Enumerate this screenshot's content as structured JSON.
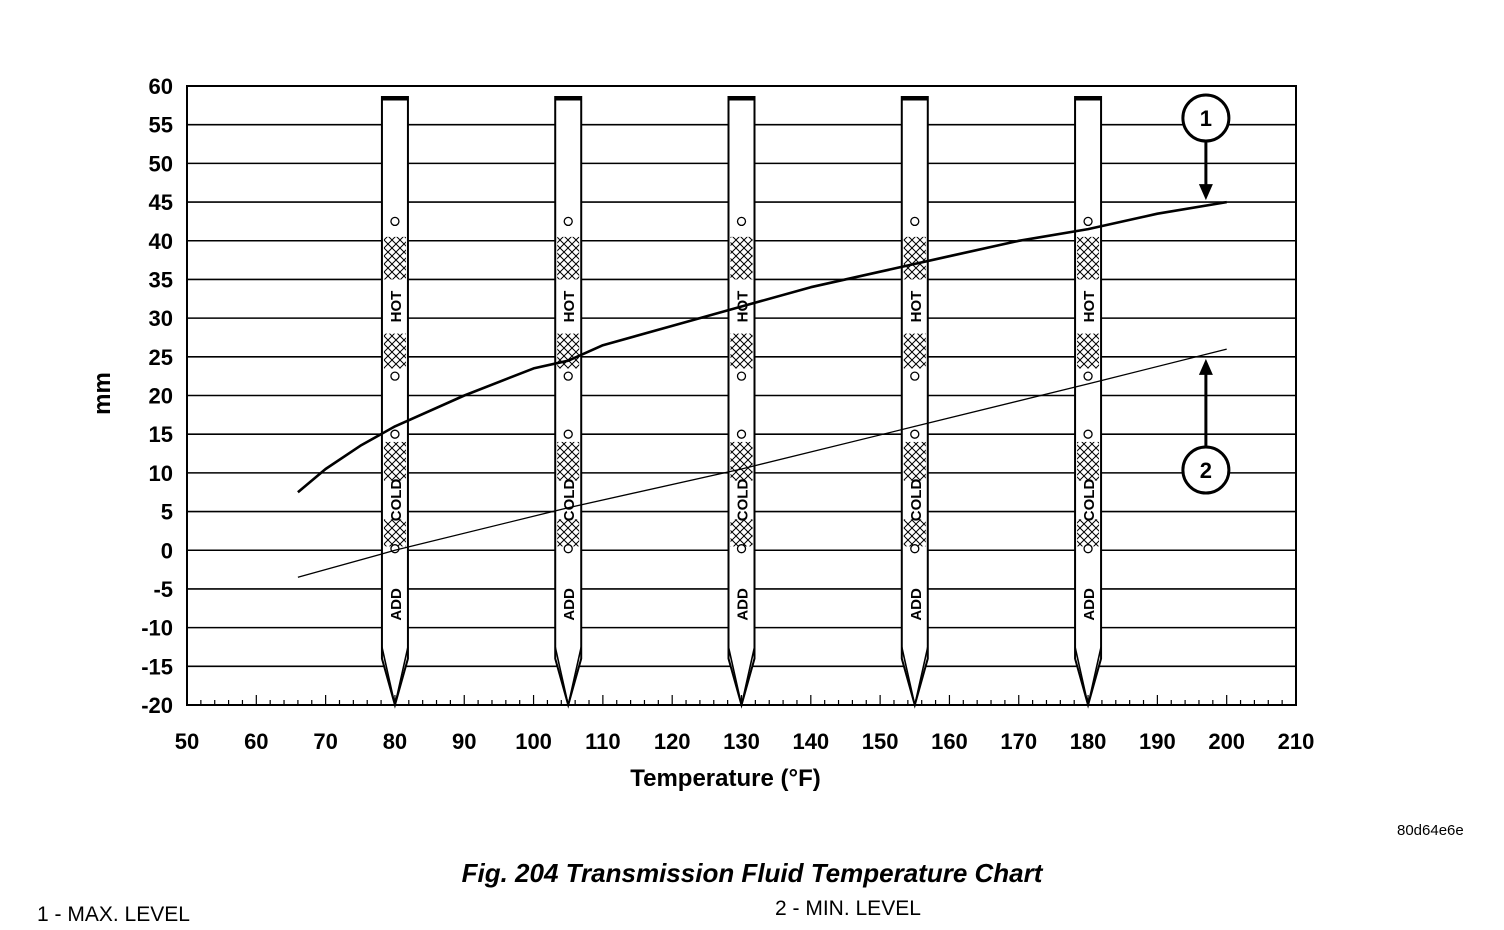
{
  "chart_data": {
    "type": "line",
    "xlabel": "Temperature (°F)",
    "ylabel": "mm",
    "xlim": [
      50,
      210
    ],
    "ylim": [
      -20,
      60
    ],
    "xticks": [
      50,
      60,
      70,
      80,
      90,
      100,
      110,
      120,
      130,
      140,
      150,
      160,
      170,
      180,
      190,
      200,
      210
    ],
    "yticks": [
      60,
      55,
      50,
      45,
      40,
      35,
      30,
      25,
      20,
      15,
      10,
      5,
      0,
      -5,
      -10,
      -15,
      -20
    ],
    "grid": "horizontal",
    "series": [
      {
        "id": "max",
        "callout": "1",
        "values": [
          {
            "x": 66,
            "y": 7.5
          },
          {
            "x": 70,
            "y": 10.5
          },
          {
            "x": 75,
            "y": 13.5
          },
          {
            "x": 80,
            "y": 16
          },
          {
            "x": 90,
            "y": 20
          },
          {
            "x": 100,
            "y": 23.5
          },
          {
            "x": 105,
            "y": 24.5
          },
          {
            "x": 110,
            "y": 26.5
          },
          {
            "x": 120,
            "y": 29
          },
          {
            "x": 130,
            "y": 31.5
          },
          {
            "x": 140,
            "y": 34
          },
          {
            "x": 150,
            "y": 36
          },
          {
            "x": 160,
            "y": 38
          },
          {
            "x": 170,
            "y": 40
          },
          {
            "x": 180,
            "y": 41.5
          },
          {
            "x": 190,
            "y": 43.5
          },
          {
            "x": 200,
            "y": 45
          }
        ]
      },
      {
        "id": "min",
        "callout": "2",
        "values": [
          {
            "x": 66,
            "y": -3.5
          },
          {
            "x": 80,
            "y": 0
          },
          {
            "x": 105,
            "y": 5.5
          },
          {
            "x": 130,
            "y": 10.5
          },
          {
            "x": 155,
            "y": 16
          },
          {
            "x": 180,
            "y": 21.5
          },
          {
            "x": 200,
            "y": 26
          }
        ]
      }
    ],
    "dipsticks": {
      "temperatures": [
        80,
        105,
        130,
        155,
        180
      ],
      "labels": {
        "add": "ADD",
        "cold": "COLD",
        "hot": "HOT"
      }
    },
    "callouts": [
      {
        "label": "1",
        "points_to": {
          "x": 197,
          "y": 45
        }
      },
      {
        "label": "2",
        "points_to": {
          "x": 197,
          "y": 25
        }
      }
    ]
  },
  "figure_code": "80d64e6e",
  "caption": "Fig. 204 Transmission Fluid Temperature Chart",
  "legend": {
    "item1": "1 - MAX. LEVEL",
    "item2": "2 - MIN. LEVEL"
  }
}
